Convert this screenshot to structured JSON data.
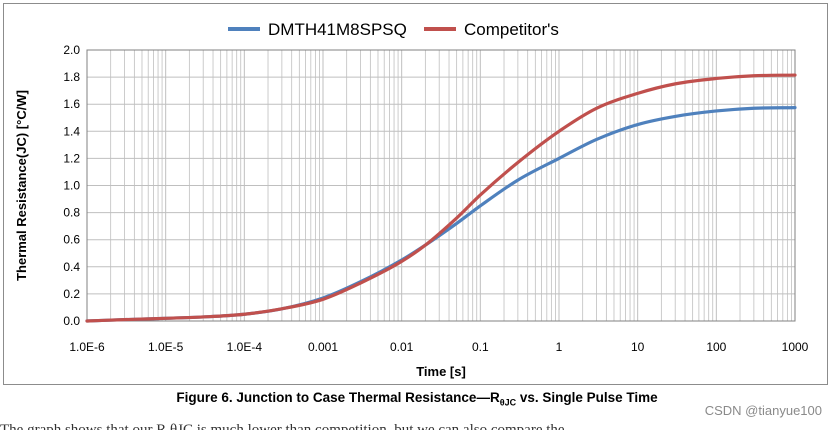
{
  "chart_data": {
    "type": "line",
    "title": "",
    "xlabel": "Time [s]",
    "ylabel": "Thermal Resistance(JC) [°C/W]",
    "x_scale": "log",
    "xlim": [
      1e-06,
      1000
    ],
    "ylim": [
      0,
      2.0
    ],
    "x_tick_labels": [
      "1.0E-6",
      "1.0E-5",
      "1.0E-4",
      "0.001",
      "0.01",
      "0.1",
      "1",
      "10",
      "100",
      "1000"
    ],
    "y_tick_labels": [
      "0.0",
      "0.2",
      "0.4",
      "0.6",
      "0.8",
      "1.0",
      "1.2",
      "1.4",
      "1.6",
      "1.8",
      "2.0"
    ],
    "grid": true,
    "legend_position": "top",
    "series": [
      {
        "name": "DMTH41M8SPSQ",
        "color": "#4f81bd",
        "x": [
          1e-06,
          3e-06,
          1e-05,
          3e-05,
          0.0001,
          0.0003,
          0.001,
          0.003,
          0.01,
          0.02,
          0.05,
          0.1,
          0.3,
          1,
          3,
          10,
          30,
          100,
          300,
          1000
        ],
        "y": [
          0.0,
          0.01,
          0.02,
          0.03,
          0.05,
          0.09,
          0.17,
          0.29,
          0.45,
          0.56,
          0.72,
          0.85,
          1.04,
          1.2,
          1.34,
          1.45,
          1.51,
          1.55,
          1.57,
          1.575
        ]
      },
      {
        "name": "Competitor's",
        "color": "#c0504d",
        "x": [
          1e-06,
          3e-06,
          1e-05,
          3e-05,
          0.0001,
          0.0003,
          0.001,
          0.003,
          0.01,
          0.02,
          0.05,
          0.1,
          0.3,
          1,
          3,
          10,
          30,
          100,
          300,
          1000
        ],
        "y": [
          0.0,
          0.01,
          0.02,
          0.03,
          0.05,
          0.09,
          0.16,
          0.28,
          0.44,
          0.56,
          0.76,
          0.93,
          1.17,
          1.4,
          1.57,
          1.68,
          1.75,
          1.79,
          1.81,
          1.815
        ]
      }
    ]
  },
  "caption": {
    "prefix": "Figure 6. Junction to Case Thermal Resistance—R",
    "subscript": "θJC",
    "suffix": " vs. Single Pulse Time"
  },
  "watermark": "CSDN @tianyue100",
  "bottom_text": "The graph shows that our R θJC is much lower than competition, but we can also compare the"
}
